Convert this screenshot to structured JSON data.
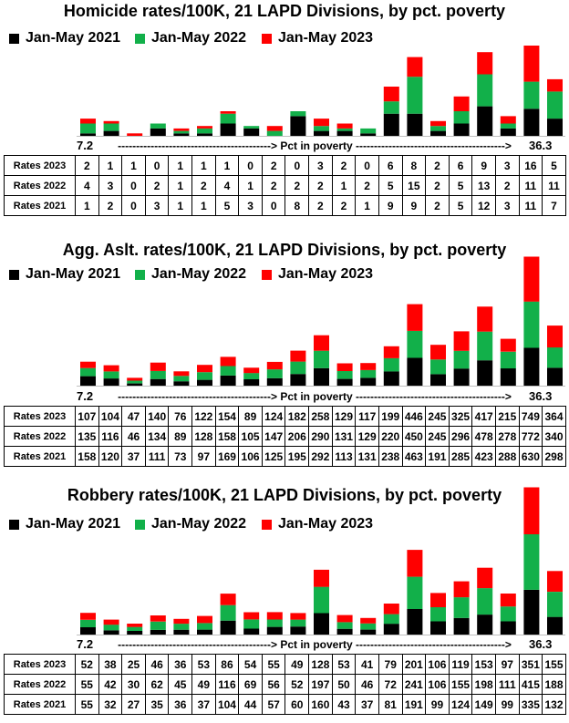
{
  "legend": {
    "s2021": "Jan-May 2021",
    "s2022": "Jan-May 2022",
    "s2023": "Jan-May 2023"
  },
  "colors": {
    "s2021": "#000000",
    "s2022": "#12b04a",
    "s2023": "#ff0000"
  },
  "axis": {
    "left": "7.2",
    "middle": "------------------------------------------> Pct in poverty ----------------------------------------->",
    "right": "36.3"
  },
  "row_labels": {
    "r2023": "Rates 2023",
    "r2022": "Rates 2022",
    "r2021": "Rates 2021"
  },
  "chart_data": [
    {
      "type": "bar",
      "stacked": true,
      "title": "Homicide rates/100K, 21 LAPD Divisions, by pct. poverty",
      "series": [
        {
          "name": "Jan-May 2021",
          "values": [
            1,
            2,
            0,
            3,
            1,
            1,
            5,
            3,
            0,
            8,
            2,
            2,
            1,
            9,
            9,
            2,
            5,
            12,
            3,
            11,
            7
          ]
        },
        {
          "name": "Jan-May 2022",
          "values": [
            4,
            3,
            0,
            2,
            1,
            2,
            4,
            1,
            2,
            2,
            2,
            1,
            2,
            5,
            15,
            2,
            5,
            13,
            2,
            11,
            11
          ]
        },
        {
          "name": "Jan-May 2023",
          "values": [
            2,
            1,
            1,
            0,
            1,
            1,
            1,
            0,
            2,
            0,
            3,
            2,
            0,
            6,
            8,
            2,
            6,
            9,
            3,
            16,
            5
          ]
        }
      ]
    },
    {
      "type": "bar",
      "stacked": true,
      "title": "Agg. Aslt. rates/100K, 21 LAPD Divisions, by pct. poverty",
      "series": [
        {
          "name": "Jan-May 2021",
          "values": [
            158,
            120,
            37,
            111,
            73,
            97,
            169,
            106,
            125,
            195,
            292,
            113,
            131,
            238,
            463,
            191,
            285,
            423,
            288,
            630,
            298
          ]
        },
        {
          "name": "Jan-May 2022",
          "values": [
            135,
            116,
            46,
            134,
            89,
            128,
            158,
            105,
            147,
            206,
            290,
            131,
            129,
            220,
            450,
            245,
            296,
            478,
            278,
            772,
            340
          ]
        },
        {
          "name": "Jan-May 2023",
          "values": [
            107,
            104,
            47,
            140,
            76,
            122,
            154,
            89,
            124,
            182,
            258,
            129,
            117,
            199,
            446,
            245,
            325,
            417,
            215,
            749,
            364
          ]
        }
      ]
    },
    {
      "type": "bar",
      "stacked": true,
      "title": "Robbery rates/100K, 21 LAPD Divisions, by pct. poverty",
      "series": [
        {
          "name": "Jan-May 2021",
          "values": [
            55,
            32,
            27,
            35,
            36,
            37,
            104,
            44,
            57,
            60,
            160,
            43,
            37,
            81,
            191,
            99,
            124,
            149,
            99,
            335,
            132
          ]
        },
        {
          "name": "Jan-May 2022",
          "values": [
            55,
            42,
            30,
            62,
            45,
            49,
            116,
            69,
            56,
            52,
            197,
            50,
            46,
            72,
            241,
            106,
            155,
            198,
            111,
            415,
            188
          ]
        },
        {
          "name": "Jan-May 2023",
          "values": [
            52,
            38,
            25,
            46,
            36,
            53,
            86,
            54,
            55,
            49,
            128,
            53,
            41,
            79,
            201,
            106,
            119,
            153,
            97,
            351,
            155
          ]
        }
      ]
    }
  ]
}
